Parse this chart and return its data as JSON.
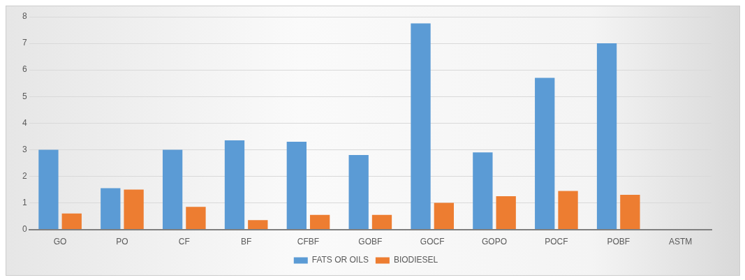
{
  "chart_data": {
    "type": "bar",
    "categories": [
      "GO",
      "PO",
      "CF",
      "BF",
      "CFBF",
      "GOBF",
      "GOCF",
      "GOPO",
      "POCF",
      "POBF",
      "ASTM"
    ],
    "series": [
      {
        "name": "FATS OR OILS",
        "color": "#5b9bd5",
        "values": [
          3.0,
          1.55,
          3.0,
          3.35,
          3.3,
          2.8,
          7.75,
          2.9,
          5.7,
          7.0,
          null
        ]
      },
      {
        "name": "BIODIESEL",
        "color": "#ed7d31",
        "values": [
          0.6,
          1.5,
          0.85,
          0.35,
          0.55,
          0.55,
          1.0,
          1.25,
          1.45,
          1.3,
          null
        ]
      }
    ],
    "ylim": [
      0,
      8
    ],
    "yticks": [
      0,
      1,
      2,
      3,
      4,
      5,
      6,
      7,
      8
    ],
    "grid": "y",
    "legend": "bottom"
  }
}
